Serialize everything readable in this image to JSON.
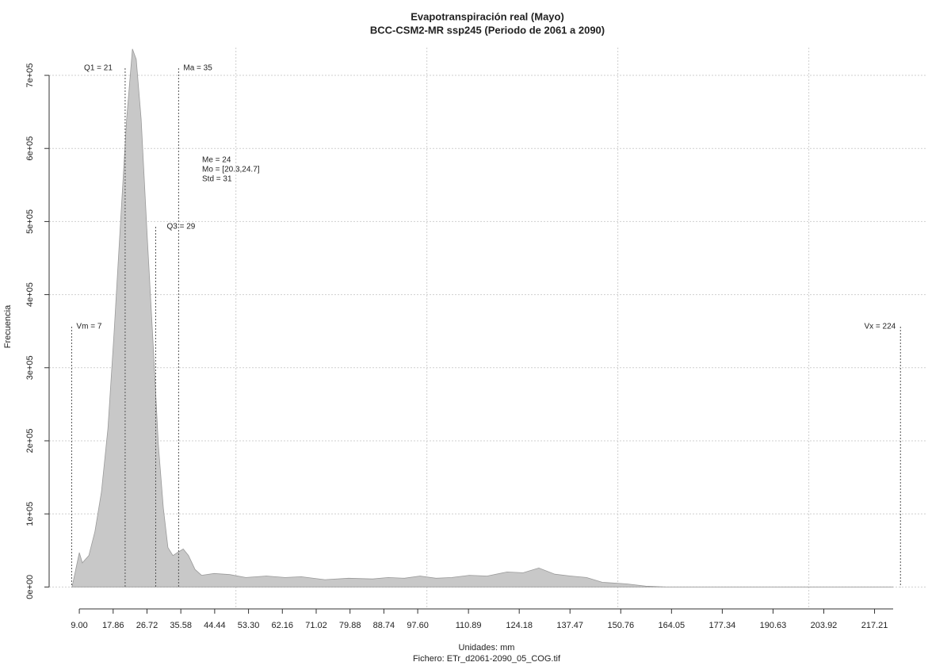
{
  "chart_data": {
    "type": "area",
    "title": "Evapotranspiración real (Mayo)",
    "subtitle": "BCC-CSM2-MR ssp245 (Periodo de 2061 a 2090)",
    "x_label": "Unidades: mm",
    "caption": "Fichero: ETr_d2061-2090_05_COG.tif",
    "y_label": "Frecuencia",
    "color": "#c8c8c8",
    "grid": true,
    "xlim": [
      1.1,
      231
    ],
    "ylim": [
      -30000,
      738000
    ],
    "xticks": [
      {
        "value": 9,
        "label": "9.00"
      },
      17.86,
      26.72,
      35.58,
      44.44,
      {
        "value": 53.3,
        "label": "53.30"
      },
      62.16,
      71.02,
      79.88,
      88.74,
      {
        "value": 97.6,
        "label": "97.60"
      },
      110.89,
      124.18,
      137.47,
      150.76,
      164.05,
      177.34,
      190.63,
      203.92,
      217.21
    ],
    "xgrid": [
      50,
      100,
      150,
      200
    ],
    "yticks": [
      {
        "value": 0,
        "label": "0e+00"
      },
      {
        "value": 100000,
        "label": "1e+05"
      },
      {
        "value": 200000,
        "label": "2e+05"
      },
      {
        "value": 300000,
        "label": "3e+05"
      },
      {
        "value": 400000,
        "label": "4e+05"
      },
      {
        "value": 500000,
        "label": "5e+05"
      },
      {
        "value": 600000,
        "label": "6e+05"
      },
      {
        "value": 700000,
        "label": "7e+05"
      }
    ],
    "x": [
      7.1,
      9.0,
      9.8,
      11.5,
      13.1,
      14.8,
      16.5,
      18.1,
      19.8,
      21.4,
      22.9,
      23.9,
      25.2,
      26.8,
      28.5,
      29.7,
      31.0,
      32.2,
      33.5,
      34.7,
      36.2,
      37.6,
      39.3,
      41.0,
      44.3,
      48.4,
      52.6,
      58.0,
      62.9,
      67.1,
      73.3,
      79.5,
      85.8,
      89.9,
      94.1,
      98.2,
      102.4,
      106.5,
      111.1,
      115.8,
      121.0,
      125.2,
      129.3,
      133.5,
      137.6,
      141.8,
      145.9,
      152.2,
      157.3,
      162.5,
      222.1
    ],
    "values": [
      0,
      47000,
      33000,
      43000,
      76000,
      130000,
      217000,
      347000,
      499000,
      640000,
      736000,
      722000,
      640000,
      477000,
      315000,
      195000,
      108000,
      54000,
      43000,
      47000,
      52000,
      43000,
      24000,
      16000,
      18500,
      17000,
      13000,
      15000,
      13000,
      14000,
      10000,
      12000,
      11000,
      13000,
      12000,
      15000,
      12000,
      13000,
      16000,
      15000,
      20500,
      19500,
      26000,
      17500,
      15000,
      13000,
      6500,
      4300,
      1100,
      0,
      0
    ],
    "annotations": [
      {
        "label": "Vm = 7",
        "value": 7
      },
      {
        "label": "Q1 = 21",
        "value": 21
      },
      {
        "label": "Q3 = 29",
        "value": 29
      },
      {
        "label": "Ma = 35",
        "value": 35
      },
      {
        "label": "Vx = 224",
        "value": 224
      }
    ],
    "stats": [
      "Me = 24",
      "Mo = [20.3,24.7]",
      "Std = 31"
    ]
  }
}
